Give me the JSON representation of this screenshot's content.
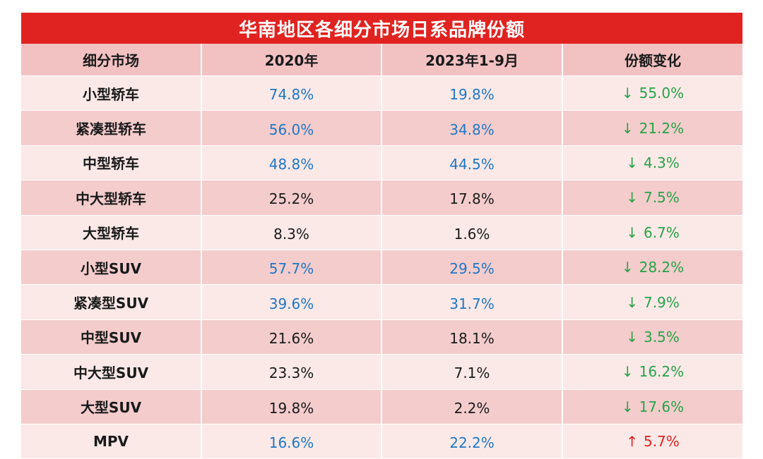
{
  "title": "华南地区各细分市场日系品牌份额",
  "headers": [
    "细分市场",
    "2020年",
    "2023年1-9月",
    "份额变化"
  ],
  "colors": {
    "title_bg": "#e02320",
    "header_bg": "#f2c2c2",
    "row_light": "#fbe9e8",
    "row_dark": "#f4cccc",
    "value_blue": "#1f77c3",
    "value_dark": "#1a1a1a",
    "down_green": "#27a348",
    "up_red": "#e02320"
  },
  "rows": [
    {
      "segment": "小型轿车",
      "y2020": "74.8%",
      "y2023": "19.8%",
      "direction": "down",
      "change": "55.0%",
      "value_color": "blue"
    },
    {
      "segment": "紧凑型轿车",
      "y2020": "56.0%",
      "y2023": "34.8%",
      "direction": "down",
      "change": "21.2%",
      "value_color": "blue"
    },
    {
      "segment": "中型轿车",
      "y2020": "48.8%",
      "y2023": "44.5%",
      "direction": "down",
      "change": "4.3%",
      "value_color": "blue"
    },
    {
      "segment": "中大型轿车",
      "y2020": "25.2%",
      "y2023": "17.8%",
      "direction": "down",
      "change": "7.5%",
      "value_color": "dark"
    },
    {
      "segment": "大型轿车",
      "y2020": "8.3%",
      "y2023": "1.6%",
      "direction": "down",
      "change": "6.7%",
      "value_color": "dark"
    },
    {
      "segment": "小型SUV",
      "y2020": "57.7%",
      "y2023": "29.5%",
      "direction": "down",
      "change": "28.2%",
      "value_color": "blue"
    },
    {
      "segment": "紧凑型SUV",
      "y2020": "39.6%",
      "y2023": "31.7%",
      "direction": "down",
      "change": "7.9%",
      "value_color": "blue"
    },
    {
      "segment": "中型SUV",
      "y2020": "21.6%",
      "y2023": "18.1%",
      "direction": "down",
      "change": "3.5%",
      "value_color": "dark"
    },
    {
      "segment": "中大型SUV",
      "y2020": "23.3%",
      "y2023": "7.1%",
      "direction": "down",
      "change": "16.2%",
      "value_color": "dark"
    },
    {
      "segment": "大型SUV",
      "y2020": "19.8%",
      "y2023": "2.2%",
      "direction": "down",
      "change": "17.6%",
      "value_color": "dark"
    },
    {
      "segment": "MPV",
      "y2020": "16.6%",
      "y2023": "22.2%",
      "direction": "up",
      "change": "5.7%",
      "value_color": "blue"
    }
  ],
  "arrows": {
    "down": "↓",
    "up": "↑"
  }
}
